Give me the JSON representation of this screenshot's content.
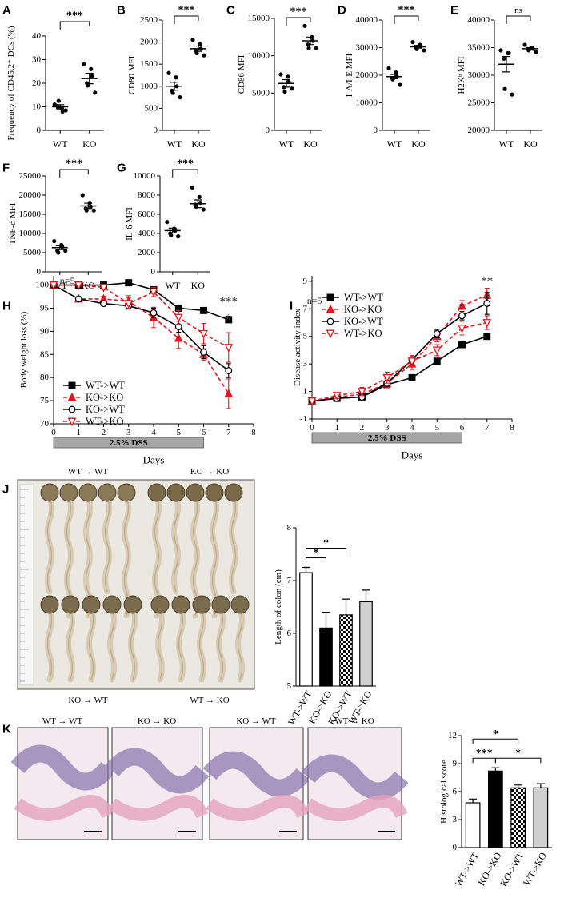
{
  "chart_data": [
    {
      "type": "dotplot",
      "panel": "A",
      "y_label": "Frequency of CD45.2⁺ DCs (%)",
      "categories": [
        "WT",
        "KO"
      ],
      "points": [
        [
          11,
          9.5,
          8,
          10,
          12.5,
          8.5
        ],
        [
          28,
          26,
          23,
          20,
          19,
          16
        ]
      ],
      "means": [
        10,
        22
      ],
      "errors": [
        0.9,
        2.2
      ],
      "ylim": [
        0,
        40
      ],
      "yticks": [
        0,
        10,
        20,
        30,
        40
      ],
      "significance": "***"
    },
    {
      "type": "dotplot",
      "panel": "B",
      "y_label": "CD80 MFI",
      "categories": [
        "WT",
        "KO"
      ],
      "points": [
        [
          1300,
          1200,
          1000,
          900,
          850,
          750
        ],
        [
          2050,
          1950,
          1850,
          1800,
          1750,
          1700
        ]
      ],
      "means": [
        1000,
        1850
      ],
      "errors": [
        90,
        60
      ],
      "ylim": [
        0,
        2500
      ],
      "yticks": [
        0,
        500,
        1000,
        1500,
        2000,
        2500
      ],
      "significance": "***"
    },
    {
      "type": "dotplot",
      "panel": "C",
      "y_label": "CD86 MFI",
      "categories": [
        "WT",
        "KO"
      ],
      "points": [
        [
          7500,
          7200,
          6500,
          5800,
          5200,
          5600
        ],
        [
          14000,
          12500,
          12000,
          11500,
          11000,
          11000
        ]
      ],
      "means": [
        6300,
        12000
      ],
      "errors": [
        500,
        500
      ],
      "ylim": [
        0,
        15000
      ],
      "yticks": [
        0,
        5000,
        10000,
        15000
      ],
      "significance": "***"
    },
    {
      "type": "dotplot",
      "panel": "D",
      "y_label": "I-A/I-E MFI",
      "categories": [
        "WT",
        "KO"
      ],
      "points": [
        [
          22500,
          21000,
          19500,
          19000,
          18500,
          16500
        ],
        [
          32000,
          31000,
          30500,
          30000,
          29500,
          29000
        ]
      ],
      "means": [
        19500,
        30300
      ],
      "errors": [
        800,
        500
      ],
      "ylim": [
        0,
        40000
      ],
      "yticks": [
        0,
        10000,
        20000,
        30000,
        40000
      ],
      "significance": "***"
    },
    {
      "type": "dotplot",
      "panel": "E",
      "y_label": "H2Kᵇ MFI",
      "categories": [
        "WT",
        "KO"
      ],
      "points": [
        [
          34500,
          34000,
          34000,
          33000,
          27500,
          26500
        ],
        [
          35500,
          35000,
          34800,
          34700,
          34500,
          34200
        ]
      ],
      "means": [
        32000,
        34800
      ],
      "errors": [
        1400,
        200
      ],
      "ylim": [
        20000,
        40000
      ],
      "yticks": [
        20000,
        25000,
        30000,
        35000,
        40000
      ],
      "significance": "ns"
    },
    {
      "type": "dotplot",
      "panel": "F",
      "y_label": "TNF-α MFI",
      "categories": [
        "WT",
        "KO"
      ],
      "points": [
        [
          8000,
          7000,
          6500,
          5500,
          5000,
          5500
        ],
        [
          20000,
          18000,
          17000,
          16500,
          16000,
          16000
        ]
      ],
      "means": [
        6300,
        17200
      ],
      "errors": [
        500,
        700
      ],
      "ylim": [
        0,
        25000
      ],
      "yticks": [
        0,
        5000,
        10000,
        15000,
        20000,
        25000
      ],
      "significance": "***"
    },
    {
      "type": "dotplot",
      "panel": "G",
      "y_label": "IL-6 MFI",
      "categories": [
        "WT",
        "KO"
      ],
      "points": [
        [
          5200,
          4500,
          4300,
          4000,
          3800,
          3700
        ],
        [
          8800,
          7800,
          7200,
          7000,
          6800,
          6500
        ]
      ],
      "means": [
        4300,
        7100
      ],
      "errors": [
        250,
        400
      ],
      "ylim": [
        0,
        10000
      ],
      "yticks": [
        0,
        2000,
        4000,
        6000,
        8000,
        10000
      ],
      "significance": "***"
    },
    {
      "type": "line",
      "panel": "H",
      "y_label": "Body weight loss (%)",
      "x_label": "Days",
      "x": [
        0,
        1,
        2,
        3,
        4,
        5,
        6,
        7
      ],
      "xlim": [
        0,
        8
      ],
      "xticks": [
        0,
        1,
        2,
        3,
        4,
        5,
        6,
        7,
        8
      ],
      "ylim": [
        70,
        102
      ],
      "yticks": [
        70,
        75,
        80,
        85,
        90,
        95,
        100
      ],
      "legend": "lower left",
      "band": {
        "label": "2.5% DSS",
        "from": 0,
        "to": 6,
        "color": "#a6a6a6"
      },
      "series": [
        {
          "name": "WT->WT",
          "color": "#000000",
          "marker": "square",
          "filled": true,
          "dashed": false,
          "values": [
            100,
            100,
            100,
            100.5,
            99,
            95,
            94.5,
            92.5
          ],
          "errors": [
            0,
            0.3,
            0.4,
            0.4,
            0.6,
            0.7,
            0.6,
            0.6
          ]
        },
        {
          "name": "KO->KO",
          "color": "#e8141c",
          "marker": "triangle",
          "filled": true,
          "dashed": true,
          "values": [
            100,
            97,
            97,
            96.5,
            93,
            88.5,
            85,
            76.5
          ],
          "errors": [
            0,
            0.5,
            0.6,
            1.2,
            2.2,
            2.2,
            1.2,
            3.2
          ]
        },
        {
          "name": "KO->WT",
          "color": "#000000",
          "marker": "circle",
          "filled": false,
          "dashed": false,
          "values": [
            100,
            97,
            96,
            95.5,
            94,
            91,
            85.5,
            81.5
          ],
          "errors": [
            0,
            0.4,
            0.5,
            0.7,
            1,
            1.2,
            1.4,
            1.5
          ]
        },
        {
          "name": "WT->KO",
          "color": "#e8141c",
          "marker": "triangle-down",
          "filled": false,
          "dashed": true,
          "values": [
            100,
            100,
            99.5,
            96,
            98.5,
            93,
            89.5,
            86.5
          ],
          "errors": [
            0,
            0.3,
            0.5,
            1.2,
            1,
            1.5,
            2.2,
            3.2
          ]
        }
      ],
      "annotations": [
        {
          "text": "n=5",
          "x": 0.55,
          "y": 101
        },
        {
          "text": "***",
          "x": 7,
          "y": 96.4
        },
        {
          "text": "#",
          "x": 7,
          "y": 93.1
        }
      ]
    },
    {
      "type": "line",
      "panel": "I",
      "y_label": "Disease activity index",
      "x_label": "Days",
      "x": [
        0,
        1,
        2,
        3,
        4,
        5,
        6,
        7
      ],
      "xlim": [
        0,
        8
      ],
      "xticks": [
        0,
        1,
        2,
        3,
        4,
        5,
        6,
        7,
        8
      ],
      "ylim": [
        -1,
        9.4
      ],
      "yticks": [
        -1,
        1,
        3,
        5,
        7,
        9
      ],
      "legend": "upper left",
      "band": {
        "label": "2.5% DSS",
        "from": 0,
        "to": 6,
        "color": "#a6a6a6"
      },
      "series": [
        {
          "name": "WT->WT",
          "color": "#000000",
          "marker": "square",
          "filled": true,
          "dashed": false,
          "values": [
            0.3,
            0.5,
            0.6,
            1.5,
            2,
            3.2,
            4.4,
            5
          ],
          "errors": [
            0,
            0.1,
            0.2,
            0.2,
            0.2,
            0.2,
            0.2,
            0.2
          ]
        },
        {
          "name": "KO->KO",
          "color": "#e8141c",
          "marker": "triangle",
          "filled": true,
          "dashed": true,
          "values": [
            0.3,
            0.6,
            0.8,
            1.6,
            3,
            5,
            7.2,
            8
          ],
          "errors": [
            0,
            0.2,
            0.3,
            0.3,
            0.4,
            0.4,
            0.4,
            0.5
          ]
        },
        {
          "name": "KO->WT",
          "color": "#000000",
          "marker": "circle",
          "filled": false,
          "dashed": false,
          "values": [
            0.3,
            0.5,
            0.6,
            1.6,
            3.3,
            5.2,
            6.5,
            7.4
          ],
          "errors": [
            0,
            0.2,
            0.2,
            0.2,
            0.3,
            0.3,
            0.3,
            0.8
          ]
        },
        {
          "name": "WT->KO",
          "color": "#e8141c",
          "marker": "triangle-down",
          "filled": false,
          "dashed": true,
          "values": [
            0.3,
            0.7,
            1,
            2,
            3.2,
            4,
            5.6,
            6
          ],
          "errors": [
            0,
            0.2,
            0.3,
            0.4,
            0.4,
            0.4,
            0.5,
            0.5
          ]
        }
      ],
      "annotations": [
        {
          "text": "n=5",
          "x": 0.1,
          "y": 7.6
        },
        {
          "text": "*",
          "x": 6,
          "y": 7.1
        },
        {
          "text": "**",
          "x": 7,
          "y": 9
        },
        {
          "text": "#",
          "x": 7,
          "y": 7.8
        }
      ]
    },
    {
      "type": "bar",
      "panel": "J",
      "y_label": "Length of colon (cm)",
      "categories": [
        "WT->WT",
        "KO->KO",
        "KO->WT",
        "WT->KO"
      ],
      "values": [
        7.15,
        6.1,
        6.35,
        6.6
      ],
      "errors": [
        0.1,
        0.3,
        0.3,
        0.22
      ],
      "fills": [
        "#ffffff",
        "#000000",
        "checkered",
        "#d0d0d0"
      ],
      "ylim": [
        5,
        8
      ],
      "yticks": [
        5,
        6,
        7,
        8
      ],
      "brackets": [
        {
          "from": 0,
          "to": 1,
          "label": "*"
        },
        {
          "from": 0,
          "to": 2,
          "label": "*"
        }
      ],
      "image_labels": [
        "WT → WT",
        "KO → KO",
        "KO → WT",
        "WT → KO"
      ]
    },
    {
      "type": "bar",
      "panel": "K",
      "y_label": "Histological score",
      "categories": [
        "WT->WT",
        "KO->KO",
        "KO->WT",
        "WT->KO"
      ],
      "values": [
        4.8,
        8.2,
        6.4,
        6.4
      ],
      "errors": [
        0.4,
        0.35,
        0.3,
        0.45
      ],
      "fills": [
        "#ffffff",
        "#000000",
        "checkered",
        "#d0d0d0"
      ],
      "ylim": [
        0,
        12
      ],
      "yticks": [
        0,
        3,
        6,
        9,
        12
      ],
      "brackets": [
        {
          "from": 0,
          "to": 1,
          "label": "***"
        },
        {
          "from": 1,
          "to": 3,
          "label": "*"
        },
        {
          "from": 0,
          "to": 2,
          "label": "*"
        }
      ],
      "image_labels": [
        "WT → WT",
        "KO → KO",
        "KO → WT",
        "WT → KO"
      ]
    }
  ]
}
